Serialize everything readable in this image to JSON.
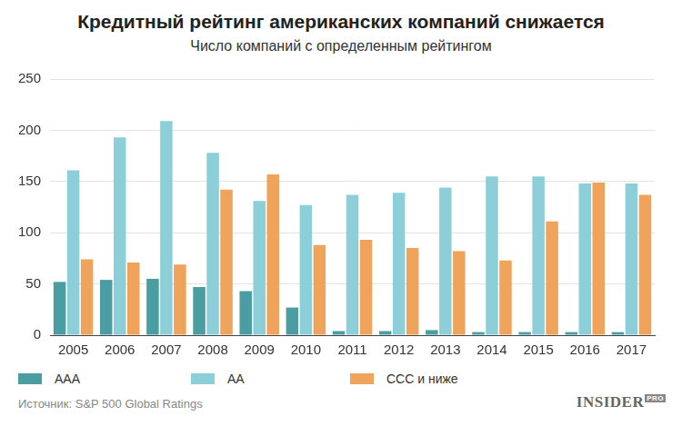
{
  "chart_data": {
    "type": "bar",
    "title": "Кредитный рейтинг американских компаний снижается",
    "subtitle": "Число компаний с определенным рейтингом",
    "source": "Источник: S&P 500 Global Ratings",
    "logo": [
      "INSIDER",
      "PRO"
    ],
    "categories": [
      "2005",
      "2006",
      "2007",
      "2008",
      "2009",
      "2010",
      "2011",
      "2012",
      "2013",
      "2014",
      "2015",
      "2016",
      "2017"
    ],
    "series": [
      {
        "name": "AAA",
        "color": "#4a9ea1",
        "values": [
          52,
          54,
          55,
          47,
          43,
          27,
          4,
          4,
          5,
          3,
          3,
          3,
          3
        ]
      },
      {
        "name": "AA",
        "color": "#8dcfd8",
        "values": [
          161,
          193,
          209,
          178,
          131,
          127,
          137,
          139,
          144,
          155,
          155,
          148,
          148
        ]
      },
      {
        "name": "CCC и ниже",
        "color": "#f0a35a",
        "values": [
          74,
          71,
          69,
          142,
          157,
          88,
          93,
          85,
          82,
          73,
          111,
          149,
          137
        ]
      }
    ],
    "ylim": [
      0,
      250
    ],
    "yticks": [
      0,
      50,
      100,
      150,
      200,
      250
    ],
    "grid": true,
    "legend": "bottom"
  }
}
